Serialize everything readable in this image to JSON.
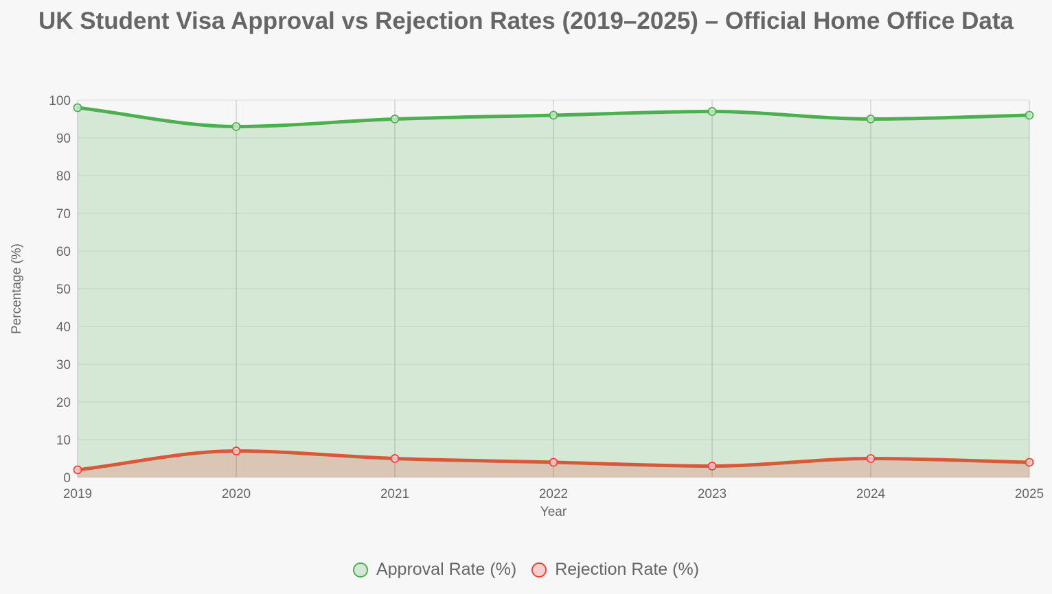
{
  "chart_data": {
    "type": "area",
    "title": "UK Student Visa Approval vs Rejection Rates (2019–2025) – Official Home Office Data",
    "xlabel": "Year",
    "ylabel": "Percentage (%)",
    "x": [
      "2019",
      "2020",
      "2021",
      "2022",
      "2023",
      "2024",
      "2025"
    ],
    "ylim": [
      0,
      100
    ],
    "yticks": [
      0,
      10,
      20,
      30,
      40,
      50,
      60,
      70,
      80,
      90,
      100
    ],
    "grid": true,
    "legend_position": "bottom",
    "series": [
      {
        "name": "Approval Rate (%)",
        "values": [
          98,
          93,
          95,
          96,
          97,
          95,
          96
        ],
        "color": "#4caf50",
        "fill": "#d4e9d5"
      },
      {
        "name": "Rejection Rate (%)",
        "values": [
          2,
          7,
          5,
          4,
          3,
          5,
          4
        ],
        "color": "#f44336",
        "line_color": "#d65a3a",
        "fill": "#f6cfcf"
      }
    ]
  }
}
